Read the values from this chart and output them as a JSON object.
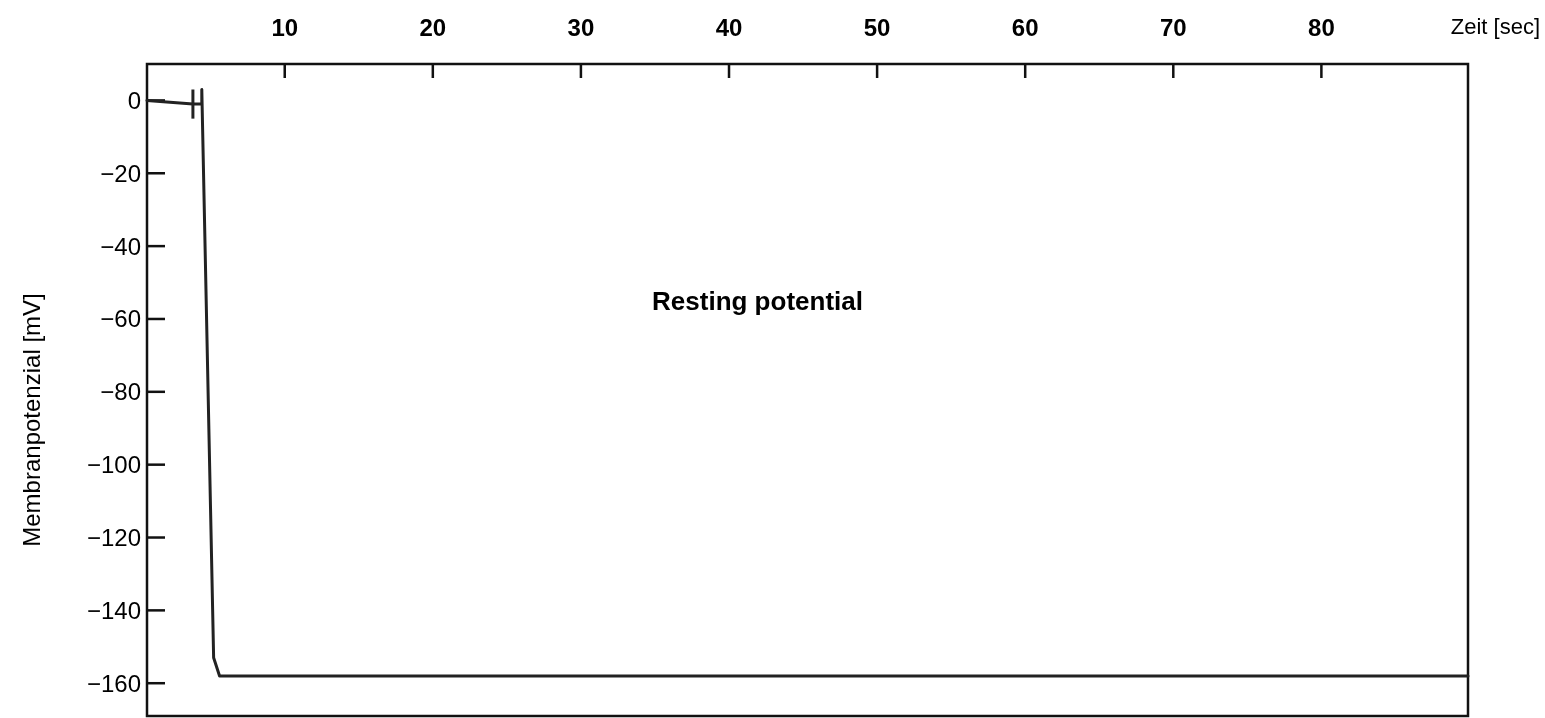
{
  "chart_data": {
    "type": "line",
    "xlabel": "Zeit [sec]",
    "ylabel": "Membranpotenzial [mV]",
    "annotations": [
      "Resting potential"
    ],
    "x": [
      0.7,
      3.8,
      4.4,
      4.4,
      5.2,
      5.6,
      89.9
    ],
    "series": [
      {
        "color": "#222222",
        "values": [
          0,
          -1,
          -1,
          3,
          -153,
          -158,
          -158
        ]
      }
    ],
    "xlim": [
      0.7,
      89.9
    ],
    "xticks": [
      10,
      20,
      30,
      40,
      50,
      60,
      70,
      80
    ],
    "ylim": [
      -169,
      10
    ],
    "yticks": [
      0,
      -20,
      -40,
      -60,
      -80,
      -100,
      -120,
      -140,
      -160
    ],
    "grid": false,
    "marker": "none",
    "line_style": "solid"
  }
}
